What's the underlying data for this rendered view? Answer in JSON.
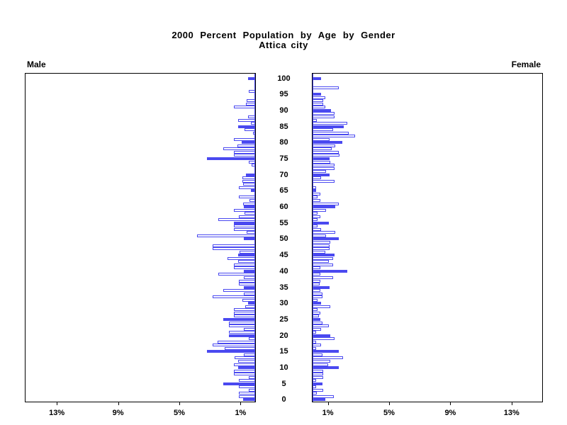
{
  "chart_data": {
    "type": "bar",
    "variant": "population-pyramid",
    "title": "2000 Percent Population by Age by Gender",
    "subtitle": "Attica city",
    "left_panel_label": "Male",
    "right_panel_label": "Female",
    "age_axis": {
      "min": 0,
      "max": 100,
      "tick_interval": 5,
      "tick_labels": [
        0,
        5,
        10,
        15,
        20,
        25,
        30,
        35,
        40,
        45,
        50,
        55,
        60,
        65,
        70,
        75,
        80,
        85,
        90,
        95,
        100
      ]
    },
    "percent_axis": {
      "lim": [
        0,
        15
      ],
      "ticks": [
        1,
        5,
        9,
        13
      ],
      "tick_labels": [
        "1%",
        "5%",
        "9%",
        "13%"
      ],
      "male_tick_order_left_to_right": [
        "13%",
        "9%",
        "5%",
        "1%"
      ],
      "female_tick_order_left_to_right": [
        "1%",
        "5%",
        "9%",
        "13%"
      ]
    },
    "legend_position": "none",
    "grid": false,
    "highlight_rule": "bars for ages that are multiples of 5 are solid blue; all other single-year ages are white with blue outline",
    "colors": {
      "bar_fill": "#4a49f0",
      "bar_outline": "#4a49f0",
      "axis": "#000000",
      "background": "#ffffff"
    },
    "unit": "percent of population",
    "ages_start_at": 0,
    "series": [
      {
        "name": "Male",
        "values": [
          0.8,
          1.05,
          1.05,
          0.4,
          1.05,
          2.1,
          1.05,
          0.4,
          1.4,
          1.4,
          1.1,
          1.4,
          1.1,
          1.35,
          0.75,
          3.15,
          2.0,
          2.77,
          2.45,
          0.4,
          1.7,
          1.7,
          0.72,
          1.7,
          1.7,
          2.08,
          1.4,
          1.4,
          1.4,
          0.66,
          0.45,
          0.85,
          2.77,
          0.75,
          2.1,
          0.75,
          1.05,
          1.05,
          0.75,
          2.4,
          0.75,
          1.4,
          1.4,
          1.1,
          1.8,
          1.1,
          1.0,
          2.77,
          2.77,
          0,
          0.75,
          3.8,
          0.55,
          1.4,
          1.4,
          1.4,
          2.4,
          1.05,
          0.7,
          1.4,
          0.75,
          0.8,
          0.35,
          1.05,
          0,
          0.3,
          1.05,
          0.8,
          0.85,
          0.85,
          0.6,
          0,
          0,
          0.25,
          0.4,
          3.15,
          1.4,
          1.4,
          2.1,
          1.15,
          0.9,
          1.4,
          0,
          0.15,
          0.7,
          1.1,
          0.3,
          1.1,
          0.45,
          0,
          0,
          1.4,
          0.6,
          0.55,
          0,
          0,
          0.4,
          0,
          0,
          0,
          0.45
        ]
      },
      {
        "name": "Female",
        "values": [
          0.85,
          1.4,
          0.3,
          0.7,
          0.25,
          0.65,
          0.25,
          0.7,
          0.7,
          0.7,
          1.7,
          1.0,
          1.15,
          2.0,
          0.65,
          1.7,
          0.25,
          0.55,
          0.25,
          1.45,
          1.15,
          0.25,
          0.55,
          1.05,
          0.65,
          0.5,
          0.4,
          0.5,
          0.33,
          1.15,
          0.55,
          0.33,
          0.65,
          0.65,
          0.5,
          1.1,
          0.45,
          0.5,
          1.35,
          0.5,
          2.25,
          0.5,
          1.35,
          1.05,
          1.35,
          1.45,
          0.85,
          1.1,
          1.1,
          1.15,
          1.7,
          0.9,
          1.5,
          0.55,
          0.33,
          1.05,
          0.33,
          0.5,
          0.33,
          0.9,
          1.5,
          1.7,
          0.5,
          0.33,
          0.5,
          0.22,
          0.25,
          0,
          1.45,
          0.55,
          1.1,
          0.9,
          1.45,
          1.45,
          1.15,
          1.1,
          1.75,
          1.7,
          1.25,
          1.5,
          1.95,
          1.1,
          2.77,
          2.35,
          1.35,
          2.05,
          2.25,
          0.3,
          1.45,
          1.45,
          1.2,
          0.85,
          0.7,
          0.7,
          0.85,
          0.55,
          0,
          1.7,
          0,
          0,
          0.55
        ]
      }
    ]
  }
}
